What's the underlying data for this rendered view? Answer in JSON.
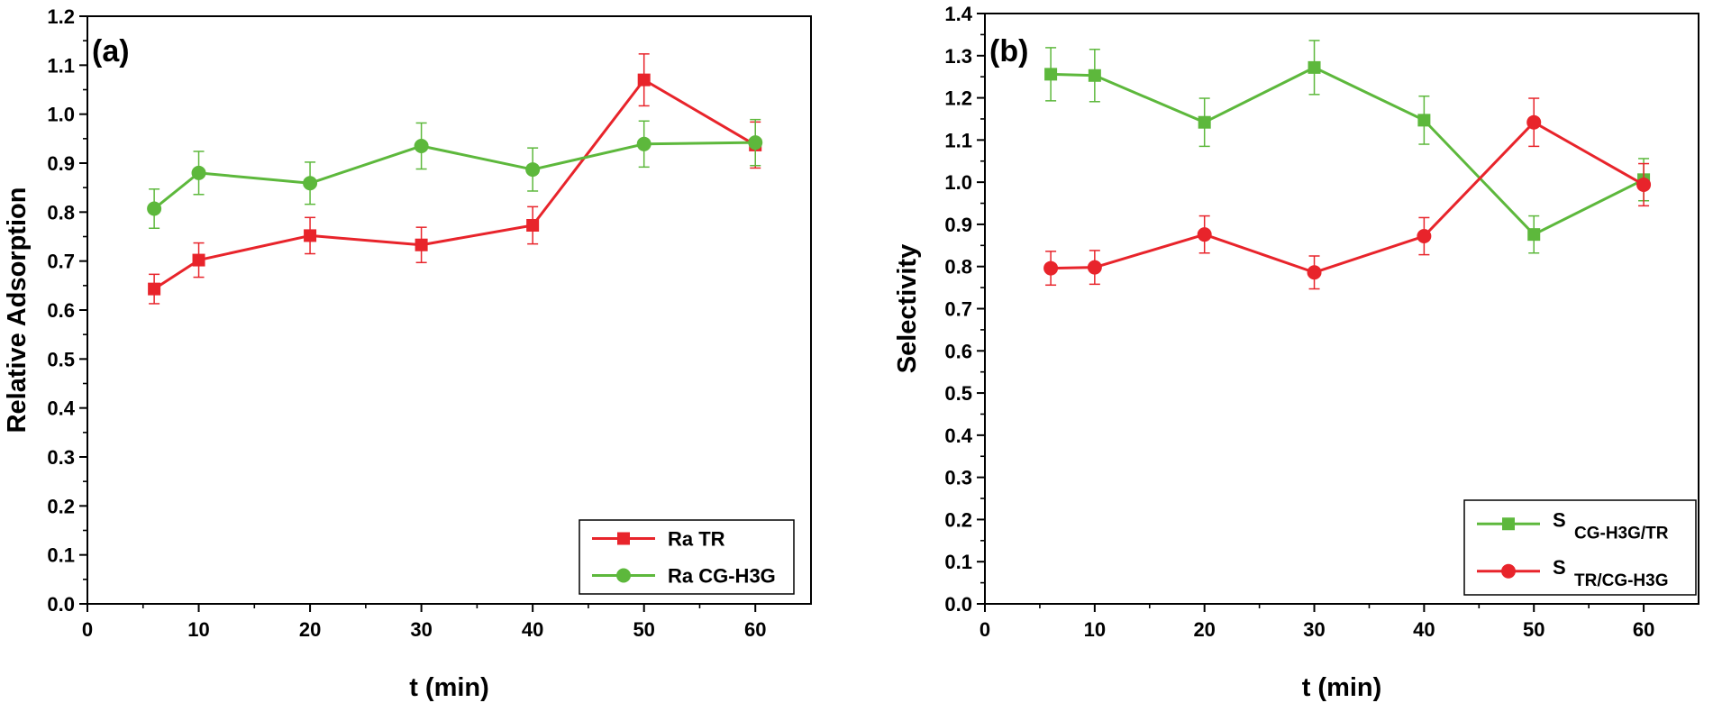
{
  "chart_data": [
    {
      "type": "line",
      "panel_label": "(a)",
      "xlabel": "t (min)",
      "ylabel": "Relative Adsorption",
      "xlim": [
        0,
        65
      ],
      "ylim": [
        0.0,
        1.2
      ],
      "xticks": [
        0,
        10,
        20,
        30,
        40,
        50,
        60
      ],
      "yticks": [
        0.0,
        0.1,
        0.2,
        0.3,
        0.4,
        0.5,
        0.6,
        0.7,
        0.8,
        0.9,
        1.0,
        1.1,
        1.2
      ],
      "xtick_labels": [
        "0",
        "10",
        "20",
        "30",
        "40",
        "50",
        "60"
      ],
      "ytick_labels": [
        "0.0",
        "0.1",
        "0.2",
        "0.3",
        "0.4",
        "0.5",
        "0.6",
        "0.7",
        "0.8",
        "0.9",
        "1.0",
        "1.1",
        "1.2"
      ],
      "legend_position": "bottom-right",
      "series": [
        {
          "name": "Ra TR",
          "sub": "",
          "color": "#e8242b",
          "marker": "square",
          "x": [
            6,
            10,
            20,
            30,
            40,
            50,
            60
          ],
          "values": [
            0.643,
            0.702,
            0.752,
            0.733,
            0.773,
            1.07,
            0.937
          ],
          "errors": [
            0.03,
            0.035,
            0.037,
            0.036,
            0.038,
            0.053,
            0.047
          ]
        },
        {
          "name": "Ra CG-H3G",
          "sub": "",
          "color": "#5db83c",
          "marker": "circle",
          "x": [
            6,
            10,
            20,
            30,
            40,
            50,
            60
          ],
          "values": [
            0.807,
            0.88,
            0.859,
            0.935,
            0.887,
            0.939,
            0.942
          ],
          "errors": [
            0.04,
            0.044,
            0.043,
            0.047,
            0.044,
            0.047,
            0.047
          ]
        }
      ]
    },
    {
      "type": "line",
      "panel_label": "(b)",
      "xlabel": "t (min)",
      "ylabel": "Selectivity",
      "xlim": [
        0,
        65
      ],
      "ylim": [
        0.0,
        1.4
      ],
      "xticks": [
        0,
        10,
        20,
        30,
        40,
        50,
        60
      ],
      "yticks": [
        0.0,
        0.1,
        0.2,
        0.3,
        0.4,
        0.5,
        0.6,
        0.7,
        0.8,
        0.9,
        1.0,
        1.1,
        1.2,
        1.3,
        1.4
      ],
      "xtick_labels": [
        "0",
        "10",
        "20",
        "30",
        "40",
        "50",
        "60"
      ],
      "ytick_labels": [
        "0.0",
        "0.1",
        "0.2",
        "0.3",
        "0.4",
        "0.5",
        "0.6",
        "0.7",
        "0.8",
        "0.9",
        "1.0",
        "1.1",
        "1.2",
        "1.3",
        "1.4"
      ],
      "legend_position": "bottom-right",
      "series": [
        {
          "name": "S",
          "sub": "CG-H3G/TR",
          "color": "#5db83c",
          "marker": "square",
          "x": [
            6,
            10,
            20,
            30,
            40,
            50,
            60
          ],
          "values": [
            1.256,
            1.253,
            1.142,
            1.272,
            1.147,
            0.876,
            1.006
          ],
          "errors": [
            0.063,
            0.062,
            0.057,
            0.064,
            0.057,
            0.044,
            0.05
          ]
        },
        {
          "name": "S",
          "sub": "TR/CG-H3G",
          "color": "#e8242b",
          "marker": "circle",
          "x": [
            6,
            10,
            20,
            30,
            40,
            50,
            60
          ],
          "values": [
            0.796,
            0.798,
            0.876,
            0.786,
            0.872,
            1.142,
            0.994
          ],
          "errors": [
            0.04,
            0.04,
            0.044,
            0.039,
            0.044,
            0.057,
            0.05
          ]
        }
      ]
    }
  ]
}
